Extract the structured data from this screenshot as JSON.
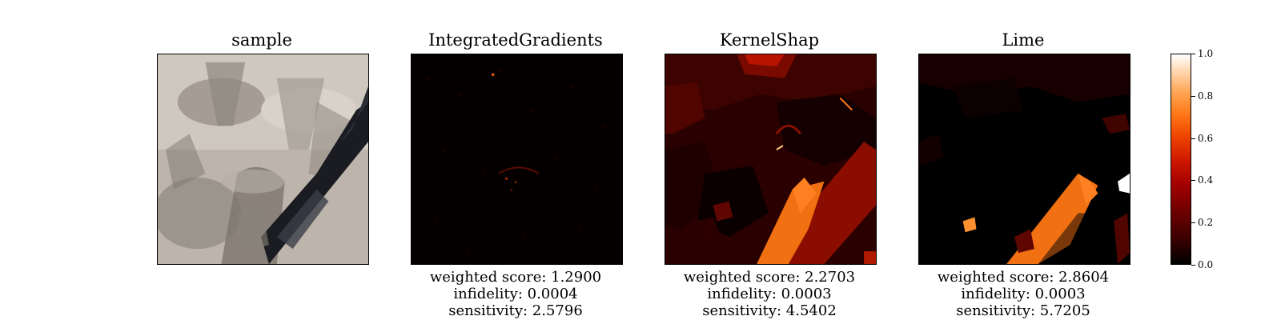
{
  "figure": {
    "panels": [
      {
        "title": "sample",
        "kind": "photo",
        "metrics": []
      },
      {
        "title": "IntegratedGradients",
        "kind": "heatmap-sparse",
        "metrics": [
          "weighted score: 1.2900",
          "infidelity: 0.0004",
          "sensitivity: 2.5796"
        ]
      },
      {
        "title": "KernelShap",
        "kind": "heatmap-segments",
        "metrics": [
          "weighted score: 2.2703",
          "infidelity: 0.0003",
          "sensitivity: 4.5402"
        ]
      },
      {
        "title": "Lime",
        "kind": "heatmap-segments-sparse",
        "metrics": [
          "weighted score: 2.8604",
          "infidelity: 0.0003",
          "sensitivity: 5.7205"
        ]
      }
    ],
    "colorbar": {
      "min": 0.0,
      "max": 1.0,
      "tick_labels": [
        "0.0",
        "0.2",
        "0.4",
        "0.6",
        "0.8",
        "1.0"
      ],
      "colormap": "gist_heat"
    }
  },
  "chart_data": {
    "type": "heatmap",
    "title": "",
    "panels": [
      "sample",
      "IntegratedGradients",
      "KernelShap",
      "Lime"
    ],
    "metrics": {
      "IntegratedGradients": {
        "weighted score": 1.29,
        "infidelity": 0.0004,
        "sensitivity": 2.5796
      },
      "KernelShap": {
        "weighted score": 2.2703,
        "infidelity": 0.0003,
        "sensitivity": 4.5402
      },
      "Lime": {
        "weighted score": 2.8604,
        "infidelity": 0.0003,
        "sensitivity": 5.7205
      }
    },
    "colorbar_range": [
      0.0,
      1.0
    ],
    "colorbar_ticks": [
      0.0,
      0.2,
      0.4,
      0.6,
      0.8,
      1.0
    ]
  }
}
